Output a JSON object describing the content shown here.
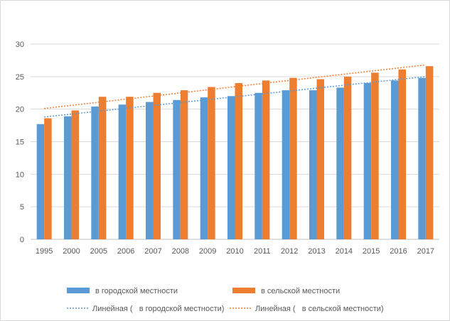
{
  "chart_data": {
    "type": "bar",
    "title": "",
    "xlabel": "",
    "ylabel": "",
    "ylim": [
      0,
      30
    ],
    "yticks": [
      0,
      5,
      10,
      15,
      20,
      25,
      30
    ],
    "grid": true,
    "legend_position": "bottom",
    "categories": [
      "1995",
      "2000",
      "2005",
      "2006",
      "2007",
      "2008",
      "2009",
      "2010",
      "2011",
      "2012",
      "2013",
      "2014",
      "2015",
      "2016",
      "2017"
    ],
    "series": [
      {
        "name": "в городской местности",
        "color": "#5b9bd5",
        "values": [
          17.7,
          18.9,
          20.4,
          20.7,
          21.1,
          21.4,
          21.8,
          22.0,
          22.5,
          22.9,
          22.9,
          23.3,
          24.0,
          24.4,
          24.8
        ]
      },
      {
        "name": "в сельской местности",
        "color": "#ed7d31",
        "values": [
          18.6,
          19.8,
          21.9,
          21.9,
          22.5,
          22.9,
          23.4,
          24.0,
          24.4,
          24.8,
          24.6,
          25.0,
          25.6,
          26.1,
          26.6
        ]
      }
    ],
    "trendlines": [
      {
        "name": "Линейная (   в городской местности)",
        "type": "linear",
        "color": "#5b9bd5",
        "start": 18.8,
        "end": 25.0
      },
      {
        "name": "Линейная (   в сельской местности)",
        "type": "linear",
        "color": "#ed7d31",
        "start": 20.1,
        "end": 26.8
      }
    ]
  }
}
